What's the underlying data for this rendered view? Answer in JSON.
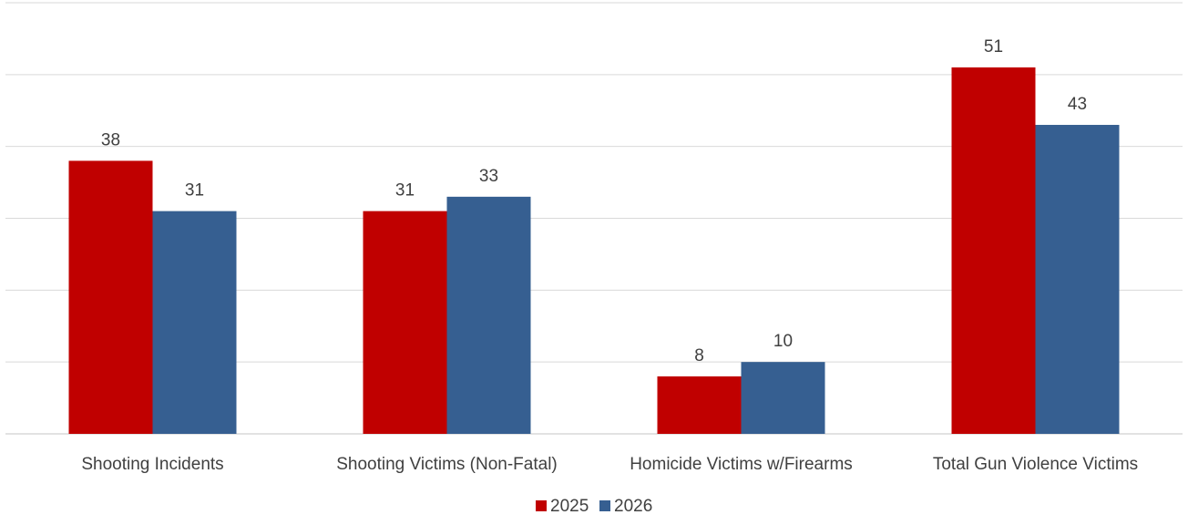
{
  "chart_data": {
    "type": "bar",
    "categories": [
      "Shooting Incidents",
      "Shooting Victims (Non-Fatal)",
      "Homicide Victims w/Firearms",
      "Total Gun Violence Victims"
    ],
    "series": [
      {
        "name": "2025",
        "values": [
          38,
          31,
          8,
          51
        ],
        "color": "#c00000"
      },
      {
        "name": "2026",
        "values": [
          31,
          33,
          10,
          43
        ],
        "color": "#365f91"
      }
    ],
    "ylim": [
      0,
      60
    ],
    "ytick_step": 10,
    "grid": true,
    "show_y_tick_labels": false,
    "legend_position": "bottom"
  }
}
